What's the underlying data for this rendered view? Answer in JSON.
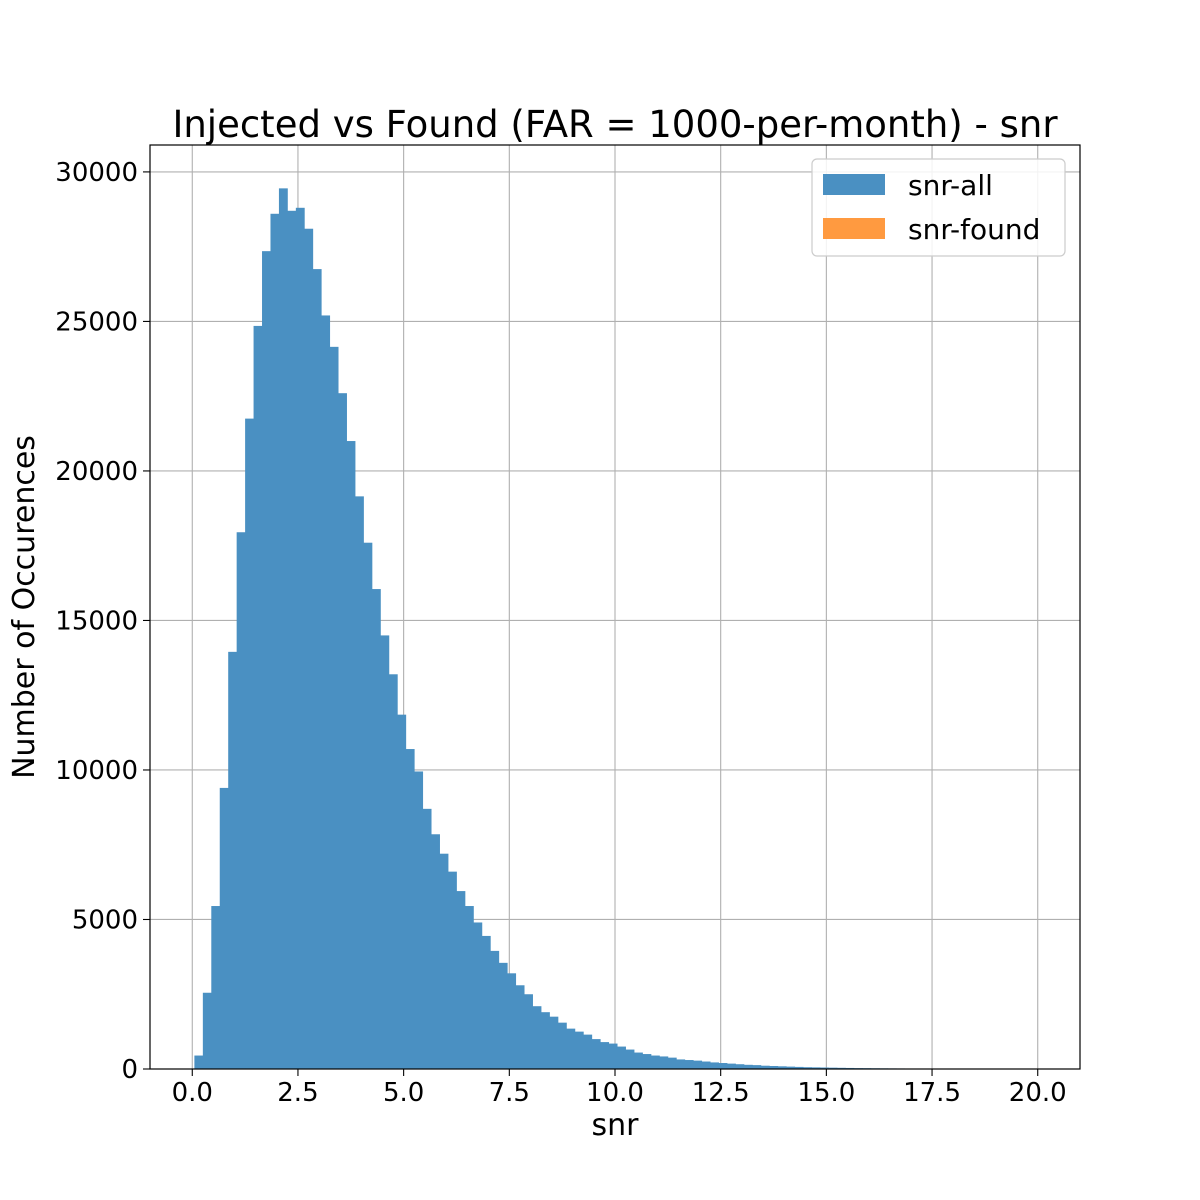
{
  "chart_data": {
    "type": "bar",
    "title": "Injected vs Found (FAR = 1000-per-month) - snr",
    "xlabel": "snr",
    "ylabel": "Number of Occurences",
    "xlim": [
      -1.0,
      21.0
    ],
    "ylim": [
      0,
      30900
    ],
    "xticks": [
      0.0,
      2.5,
      5.0,
      7.5,
      10.0,
      12.5,
      15.0,
      17.5,
      20.0
    ],
    "xtick_labels": [
      "0.0",
      "2.5",
      "5.0",
      "7.5",
      "10.0",
      "12.5",
      "15.0",
      "17.5",
      "20.0"
    ],
    "yticks": [
      0,
      5000,
      10000,
      15000,
      20000,
      25000,
      30000
    ],
    "ytick_labels": [
      "0",
      "5000",
      "10000",
      "15000",
      "20000",
      "25000",
      "30000"
    ],
    "grid": true,
    "legend_position": "top-right",
    "bin_start": 0.05,
    "bin_width": 0.2,
    "series": [
      {
        "name": "snr-all",
        "color": "#4a90c2",
        "values": [
          450,
          2550,
          5450,
          9400,
          13950,
          17950,
          21750,
          24850,
          27350,
          28600,
          29450,
          28700,
          28800,
          28100,
          26750,
          25200,
          24150,
          22600,
          21000,
          19150,
          17600,
          16050,
          14500,
          13200,
          11850,
          10700,
          9950,
          8700,
          7850,
          7200,
          6600,
          5950,
          5450,
          4900,
          4450,
          3950,
          3550,
          3200,
          2800,
          2500,
          2100,
          1900,
          1750,
          1550,
          1350,
          1250,
          1150,
          1000,
          900,
          850,
          750,
          650,
          550,
          500,
          450,
          420,
          380,
          320,
          300,
          280,
          250,
          220,
          200,
          180,
          160,
          140,
          130,
          110,
          100,
          90,
          80,
          70,
          60,
          55,
          50,
          45,
          40,
          35,
          30,
          28,
          25,
          22,
          20,
          18,
          16,
          14,
          12,
          10,
          9,
          8,
          7,
          6,
          5,
          5,
          4,
          4,
          3,
          3,
          2,
          2
        ]
      },
      {
        "name": "snr-found",
        "color": "#ff9a40",
        "values": []
      }
    ]
  }
}
